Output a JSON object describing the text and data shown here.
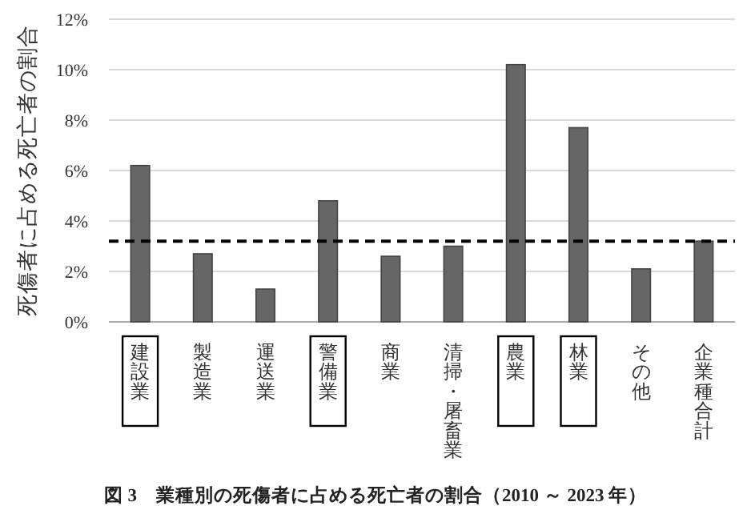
{
  "chart_data": {
    "type": "bar",
    "title": "図 3　業種別の死傷者に占める死亡者の割合（2010 ～ 2023 年）",
    "ylabel": "死傷者に占める死亡者の割合",
    "categories": [
      "建設業",
      "製造業",
      "運送業",
      "警備業",
      "商業",
      "清掃・屠畜業",
      "農業",
      "林業",
      "その他",
      "企業種合計"
    ],
    "values": [
      6.2,
      2.7,
      1.3,
      4.8,
      2.6,
      3.0,
      10.2,
      7.7,
      2.1,
      3.2
    ],
    "color": "#666666",
    "ylim": [
      0,
      12
    ],
    "yticks": [
      {
        "value": 0,
        "label": "0%"
      },
      {
        "value": 2,
        "label": "2%"
      },
      {
        "value": 4,
        "label": "4%"
      },
      {
        "value": 6,
        "label": "6%"
      },
      {
        "value": 8,
        "label": "8%"
      },
      {
        "value": 10,
        "label": "10%"
      },
      {
        "value": 12,
        "label": "12%"
      }
    ],
    "grid": "y",
    "ref_lines": [
      {
        "axis": "y",
        "value": 3.2,
        "color": "#000000",
        "line_style": "dashed"
      }
    ]
  }
}
